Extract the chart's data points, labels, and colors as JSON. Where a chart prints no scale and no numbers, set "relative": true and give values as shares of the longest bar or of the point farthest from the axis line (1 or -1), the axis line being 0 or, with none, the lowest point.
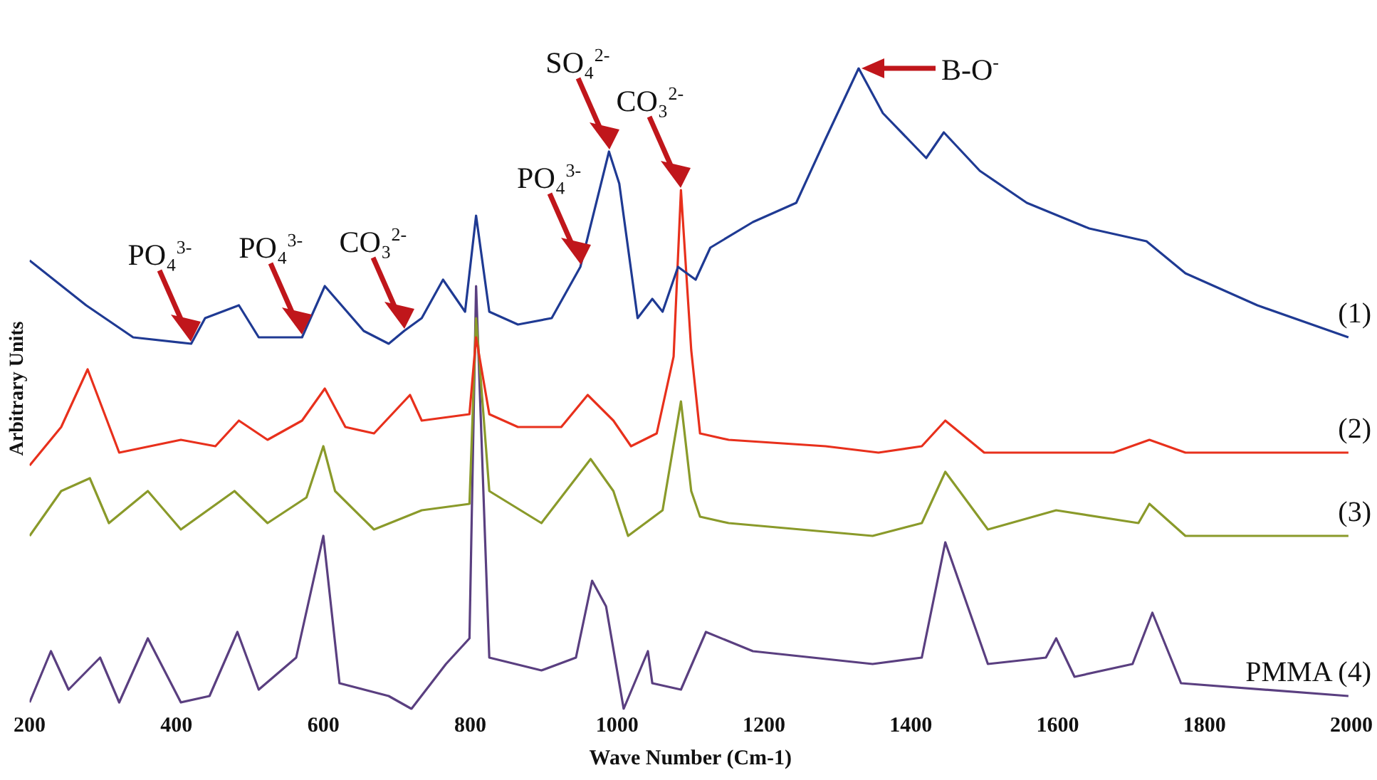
{
  "chart_data": {
    "type": "line",
    "relative": true,
    "xlabel": "Wave Number (Cm-1)",
    "ylabel": "Arbitrary Units",
    "xlim": [
      200,
      2000
    ],
    "xticks": [
      200,
      400,
      600,
      800,
      1000,
      1200,
      1400,
      1600,
      1800,
      2000
    ],
    "grid": false,
    "legend": false,
    "marker": "none",
    "line_style": "solid",
    "series": [
      {
        "name": "(1)",
        "color": "#1f3a93",
        "x": [
          200,
          277,
          341,
          420,
          439,
          485,
          512,
          571,
          602,
          655,
          689,
          710,
          734,
          763,
          793,
          808,
          826,
          865,
          911,
          950,
          989,
          1003,
          1028,
          1048,
          1062,
          1083,
          1107,
          1127,
          1185,
          1244,
          1284,
          1329,
          1362,
          1421,
          1445,
          1494,
          1558,
          1643,
          1721,
          1774,
          1872,
          1996
        ],
        "values": [
          0.7,
          0.63,
          0.58,
          0.57,
          0.61,
          0.63,
          0.58,
          0.58,
          0.66,
          0.59,
          0.57,
          0.59,
          0.61,
          0.67,
          0.62,
          0.77,
          0.62,
          0.6,
          0.61,
          0.69,
          0.87,
          0.82,
          0.61,
          0.64,
          0.62,
          0.69,
          0.67,
          0.72,
          0.76,
          0.79,
          0.89,
          1.0,
          0.93,
          0.86,
          0.9,
          0.84,
          0.79,
          0.75,
          0.73,
          0.68,
          0.63,
          0.58
        ]
      },
      {
        "name": "(2)",
        "color": "#e8301c",
        "x": [
          200,
          243,
          279,
          322,
          406,
          453,
          485,
          524,
          571,
          602,
          630,
          669,
          718,
          734,
          799,
          808,
          826,
          865,
          924,
          960,
          995,
          1019,
          1054,
          1077,
          1087,
          1101,
          1113,
          1152,
          1284,
          1356,
          1415,
          1447,
          1500,
          1676,
          1725,
          1774,
          1996
        ],
        "values": [
          0.38,
          0.44,
          0.53,
          0.4,
          0.42,
          0.41,
          0.45,
          0.42,
          0.45,
          0.5,
          0.44,
          0.43,
          0.49,
          0.45,
          0.46,
          0.58,
          0.46,
          0.44,
          0.44,
          0.49,
          0.45,
          0.41,
          0.43,
          0.55,
          0.81,
          0.56,
          0.43,
          0.42,
          0.41,
          0.4,
          0.41,
          0.45,
          0.4,
          0.4,
          0.42,
          0.4,
          0.4
        ]
      },
      {
        "name": "(3)",
        "color": "#8a9a2a",
        "x": [
          200,
          243,
          282,
          308,
          361,
          406,
          479,
          524,
          577,
          600,
          616,
          669,
          734,
          799,
          808,
          826,
          897,
          964,
          995,
          1015,
          1062,
          1087,
          1101,
          1113,
          1152,
          1348,
          1415,
          1447,
          1505,
          1598,
          1710,
          1725,
          1774,
          1996
        ],
        "values": [
          0.27,
          0.34,
          0.36,
          0.29,
          0.34,
          0.28,
          0.34,
          0.29,
          0.33,
          0.41,
          0.34,
          0.28,
          0.31,
          0.32,
          0.61,
          0.34,
          0.29,
          0.39,
          0.34,
          0.27,
          0.31,
          0.48,
          0.34,
          0.3,
          0.29,
          0.27,
          0.29,
          0.37,
          0.28,
          0.31,
          0.29,
          0.32,
          0.27,
          0.27
        ]
      },
      {
        "name": "PMMA (4)",
        "color": "#5a3f80",
        "x": [
          200,
          229,
          253,
          296,
          322,
          361,
          406,
          445,
          483,
          512,
          563,
          600,
          622,
          689,
          720,
          767,
          799,
          808,
          826,
          897,
          944,
          966,
          985,
          1009,
          1042,
          1048,
          1087,
          1121,
          1185,
          1348,
          1415,
          1447,
          1505,
          1584,
          1598,
          1623,
          1702,
          1729,
          1768,
          1996
        ],
        "values": [
          0.01,
          0.09,
          0.03,
          0.08,
          0.01,
          0.11,
          0.01,
          0.02,
          0.12,
          0.03,
          0.08,
          0.27,
          0.04,
          0.02,
          0.0,
          0.07,
          0.11,
          0.66,
          0.08,
          0.06,
          0.08,
          0.2,
          0.16,
          0.0,
          0.09,
          0.04,
          0.03,
          0.12,
          0.09,
          0.07,
          0.08,
          0.26,
          0.07,
          0.08,
          0.11,
          0.05,
          0.07,
          0.15,
          0.04,
          0.02
        ]
      }
    ],
    "annotations": [
      {
        "text": "PO₄$^{3-}$",
        "x": 420,
        "y": 0.57
      },
      {
        "text": "PO₄$^{3-}$",
        "x": 571,
        "y": 0.58
      },
      {
        "text": "CO₃$^{2-}$",
        "x": 710,
        "y": 0.59
      },
      {
        "text": "PO₄$^{3-}$",
        "x": 950,
        "y": 0.69
      },
      {
        "text": "SO₄$^{2-}$",
        "x": 989,
        "y": 0.87
      },
      {
        "text": "CO₃$^{2-}$",
        "x": 1087,
        "y": 0.81
      },
      {
        "text": "B-O$^{-}$",
        "x": 1329,
        "y": 1.0
      }
    ]
  }
}
